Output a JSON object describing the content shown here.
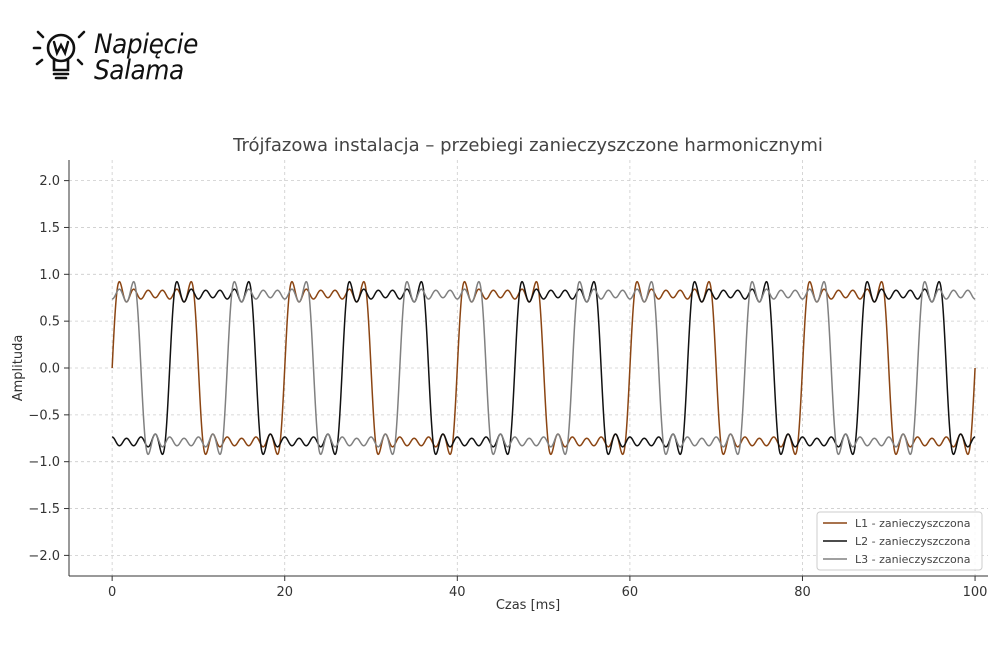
{
  "logo": {
    "line1": "Napięcie",
    "line2": "Salama",
    "icon": "lightbulb-w-icon"
  },
  "chart_data": {
    "type": "line",
    "title": "Trójfazowa instalacja – przebiegi zanieczyszczone harmonicznymi",
    "xlabel": "Czas [ms]",
    "ylabel": "Amplituda",
    "xlim": [
      -5,
      101.5
    ],
    "ylim": [
      -2.22,
      2.22
    ],
    "xticks": [
      0,
      20,
      40,
      60,
      80,
      100
    ],
    "xtick_labels": [
      "0",
      "20",
      "40",
      "60",
      "80",
      "100"
    ],
    "yticks": [
      2.0,
      1.5,
      1.0,
      0.5,
      0.0,
      -0.5,
      -1.0,
      -1.5,
      -2.0
    ],
    "ytick_labels": [
      "2.0",
      "1.5",
      "1.0",
      "0.5",
      "0.0",
      "−0.5",
      "−1.0",
      "−1.5",
      "−2.0"
    ],
    "grid": true,
    "legend_position": "bottom-right",
    "x_range": [
      0,
      100
    ],
    "fundamental_period": 20,
    "series": [
      {
        "name": "L1 - zanieczyszczona",
        "color": "#8B4513",
        "phase_deg": 0,
        "harmonics": [
          [
            1,
            1
          ],
          [
            3,
            0.33
          ],
          [
            5,
            0.2
          ],
          [
            7,
            0.14
          ],
          [
            9,
            0.11
          ],
          [
            11,
            0.09
          ]
        ]
      },
      {
        "name": "L2 - zanieczyszczona",
        "color": "#111111",
        "phase_deg": -120,
        "harmonics": [
          [
            1,
            1
          ],
          [
            3,
            0.33
          ],
          [
            5,
            0.2
          ],
          [
            7,
            0.14
          ],
          [
            9,
            0.11
          ],
          [
            11,
            0.09
          ]
        ]
      },
      {
        "name": "L3 - zanieczyszczona",
        "color": "#808080",
        "phase_deg": 120,
        "harmonics": [
          [
            1,
            1
          ],
          [
            3,
            0.33
          ],
          [
            5,
            0.2
          ],
          [
            7,
            0.14
          ],
          [
            9,
            0.11
          ],
          [
            11,
            0.09
          ]
        ]
      }
    ]
  }
}
